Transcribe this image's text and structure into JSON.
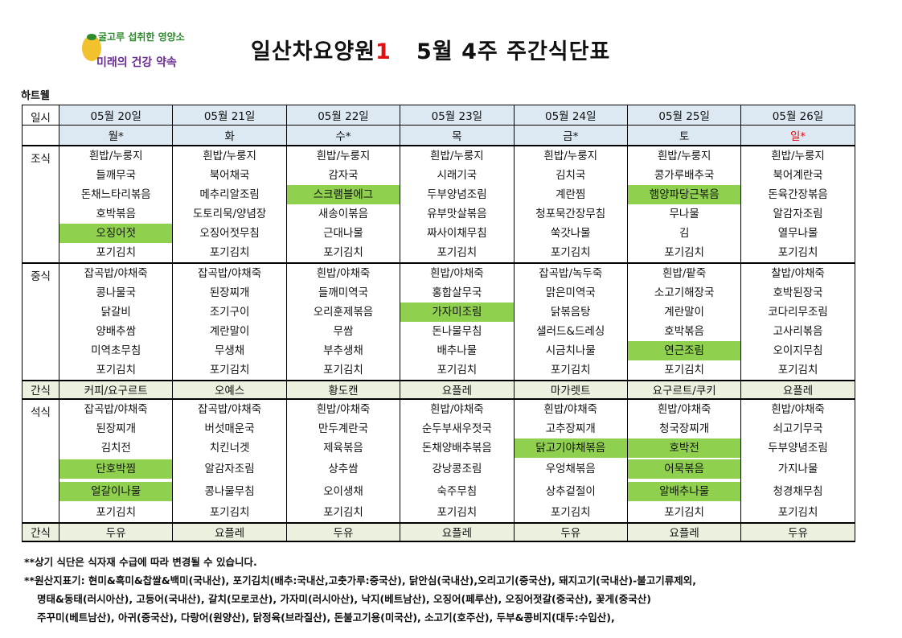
{
  "logo": {
    "line1": "굴고루 섭취한 영양소",
    "line2": "미래의 건강 약속",
    "colors": {
      "green": "#2e8b2e",
      "orange": "#e8791c",
      "purple": "#6a2c91",
      "yellow": "#f2c12e"
    }
  },
  "title": {
    "prefix": "일산차요양원",
    "number": "1",
    "suffix": "5월 4주 주간식단표"
  },
  "subheader": "하트웰",
  "table": {
    "label_day": "일시",
    "dates": [
      "05월 20일",
      "05월 21일",
      "05월 22일",
      "05월 23일",
      "05월 24일",
      "05월 25일",
      "05월 26일"
    ],
    "weekdays": [
      "월*",
      "화",
      "수*",
      "목",
      "금*",
      "토",
      "일*"
    ],
    "meals": [
      {
        "label": "조식",
        "rows": [
          [
            "흰밥/누룽지",
            "흰밥/누룽지",
            "흰밥/누룽지",
            "흰밥/누룽지",
            "흰밥/누룽지",
            "흰밥/누룽지",
            "흰밥/누룽지"
          ],
          [
            "들깨무국",
            "북어채국",
            "감자국",
            "시래기국",
            "김치국",
            "콩가루배추국",
            "북어계란국"
          ],
          [
            "돈채느타리볶음",
            "메추리알조림",
            "스크램블에그",
            "두부양념조림",
            "계란찜",
            "햄양파당근볶음",
            "돈육간장볶음"
          ],
          [
            "호박볶음",
            "도토리묵/양념장",
            "새송이볶음",
            "유부맛살볶음",
            "청포묵간장무침",
            "무나물",
            "알감자조림"
          ],
          [
            "오징어젓",
            "오징어젓무침",
            "근대나물",
            "짜사이채무침",
            "쑥갓나물",
            "김",
            "열무나물"
          ],
          [
            "포기김치",
            "포기김치",
            "포기김치",
            "포기김치",
            "포기김치",
            "포기김치",
            "포기김치"
          ]
        ]
      },
      {
        "label": "중식",
        "rows": [
          [
            "잡곡밥/야채죽",
            "잡곡밥/야채죽",
            "흰밥/야채죽",
            "흰밥/야채죽",
            "잡곡밥/녹두죽",
            "흰밥/팥죽",
            "찰밥/야채죽"
          ],
          [
            "콩나물국",
            "된장찌개",
            "들깨미역국",
            "홍합살무국",
            "맑은미역국",
            "소고기해장국",
            "호박된장국"
          ],
          [
            "닭갈비",
            "조기구이",
            "오리훈제볶음",
            "가자미조림",
            "닭볶음탕",
            "계란말이",
            "코다리무조림"
          ],
          [
            "양배추쌈",
            "계란말이",
            "무쌈",
            "돈나물무침",
            "샐러드&드레싱",
            "호박볶음",
            "고사리볶음"
          ],
          [
            "미역초무침",
            "무생채",
            "부추생채",
            "배추나물",
            "시금치나물",
            "연근조림",
            "오이지무침"
          ],
          [
            "포기김치",
            "포기김치",
            "포기김치",
            "포기김치",
            "포기김치",
            "포기김치",
            "포기김치"
          ]
        ]
      },
      {
        "label": "간식",
        "items": [
          "커피/요구르트",
          "오예스",
          "황도캔",
          "요플레",
          "마가렛트",
          "요구르트/쿠키",
          "요플레"
        ]
      },
      {
        "label": "석식",
        "rows": [
          [
            "잡곡밥/야채죽",
            "잡곡밥/야채죽",
            "흰밥/야채죽",
            "흰밥/야채죽",
            "흰밥/야채죽",
            "흰밥/야채죽",
            "흰밥/야채죽"
          ],
          [
            "된장찌개",
            "버섯매운국",
            "만두계란국",
            "순두부새우젓국",
            "고추장찌개",
            "청국장찌개",
            "쇠고기무국"
          ],
          [
            "김치전",
            "치킨너겟",
            "제육볶음",
            "돈채양배추볶음",
            "닭고기야채볶음",
            "호박전",
            "두부양념조림"
          ],
          [
            "단호박찜",
            "알감자조림",
            "상추쌈",
            "강낭콩조림",
            "우엉채볶음",
            "어묵볶음",
            "가지나물"
          ],
          [
            "얼갈이나물",
            "콩나물무침",
            "오이생채",
            "숙주무침",
            "상추겉절이",
            "알배추나물",
            "청경채무침"
          ],
          [
            "포기김치",
            "포기김치",
            "포기김치",
            "포기김치",
            "포기김치",
            "포기김치",
            "포기김치"
          ]
        ]
      },
      {
        "label": "간식",
        "items": [
          "두유",
          "요플레",
          "두유",
          "요플레",
          "두유",
          "요플레",
          "두유"
        ]
      }
    ],
    "highlight_color": "#8fd14f"
  },
  "notes": {
    "line1": "**상기 식단은 식자재 수급에 따라 변경될 수 있습니다.",
    "line2": "**원산지표기: 현미&흑미&찹쌀&백미(국내산), 포기김치(배추:국내산,고춧가루:중국산), 닭안심(국내산),오리고기(중국산), 돼지고기(국내산)-불고기류제외,",
    "line3": "명태&동태(러시아산), 고등어(국내산), 갈치(모로코산), 가자미(러시아산), 낙지(베트남산), 오징어(페루산), 오징어젓갈(중국산),  꽃게(중국산)",
    "line4": "주꾸미(베트남산), 아귀(중국산), 다랑어(원양산), 닭정육(브라질산), 돈불고기용(미국산), 소고기(호주산), 두부&콩비지(대두:수입산),"
  }
}
